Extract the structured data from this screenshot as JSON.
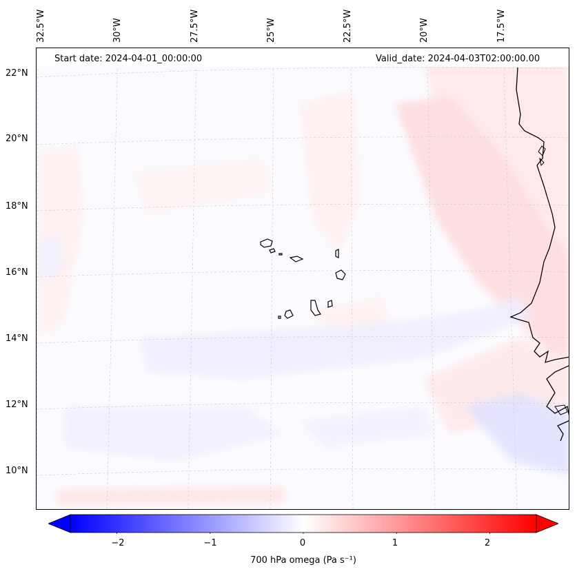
{
  "map": {
    "start_date": "Start date: 2024-04-01_00:00:00",
    "valid_date": "Valid_date: 2024-04-03T02:00:00.00",
    "lon_labels": [
      "32.5°W",
      "30°W",
      "27.5°W",
      "25°W",
      "22.5°W",
      "20°W",
      "17.5°W"
    ],
    "lat_labels": [
      "22°N",
      "20°N",
      "18°N",
      "16°N",
      "14°N",
      "12°N",
      "10°N"
    ]
  },
  "colorbar": {
    "label": "700 hPa omega (Pa s⁻¹)",
    "ticks": [
      "−2",
      "−1",
      "0",
      "1",
      "2"
    ],
    "range": [
      -2.5,
      2.5
    ],
    "colors": {
      "min": "#0000ff",
      "mid": "#ffffff",
      "max": "#ff0000"
    }
  }
}
